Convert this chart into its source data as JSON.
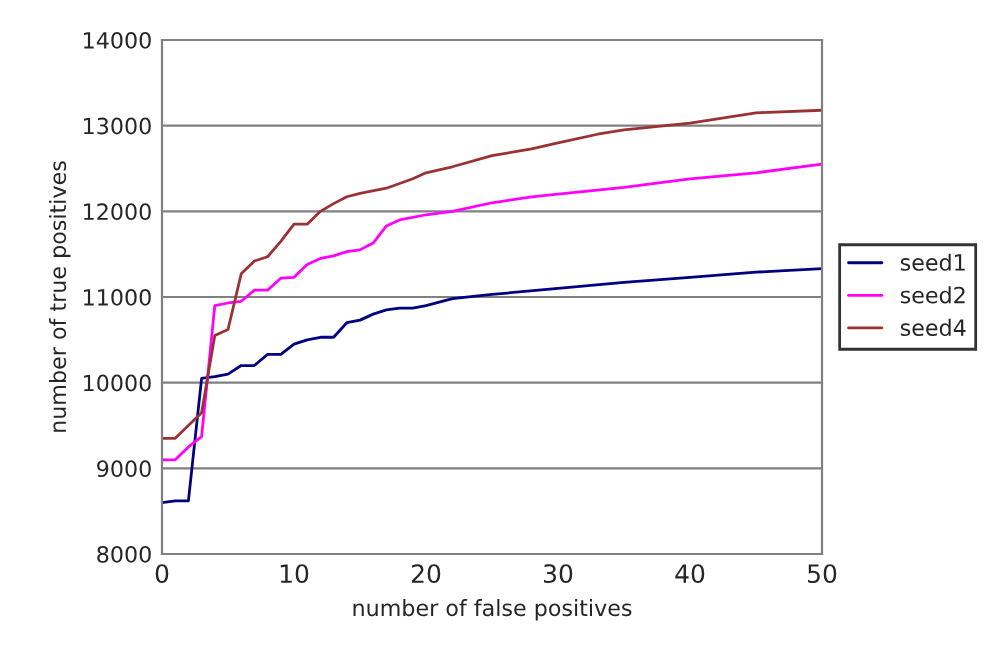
{
  "chart_data": {
    "type": "line",
    "xlabel": "number of false positives",
    "ylabel": "number of true positives",
    "xlim": [
      0,
      50
    ],
    "xticks": [
      0,
      10,
      20,
      30,
      40,
      50
    ],
    "ylim": [
      8000,
      14000
    ],
    "yticks": [
      8000,
      9000,
      10000,
      11000,
      12000,
      13000,
      14000
    ],
    "grid": "y",
    "legend": "right",
    "marker": "none",
    "line_style": "solid",
    "series": [
      {
        "name": "seed1",
        "color": "#000080",
        "x": [
          0,
          1,
          2,
          3,
          4,
          5,
          6,
          7,
          8,
          9,
          10,
          11,
          12,
          13,
          14,
          15,
          16,
          17,
          18,
          19,
          20,
          22,
          25,
          30,
          35,
          40,
          45,
          50
        ],
        "values": [
          8600,
          8620,
          8620,
          10050,
          10070,
          10100,
          10200,
          10200,
          10330,
          10330,
          10450,
          10500,
          10530,
          10530,
          10700,
          10730,
          10800,
          10850,
          10870,
          10870,
          10900,
          10980,
          11030,
          11100,
          11170,
          11230,
          11290,
          11330
        ]
      },
      {
        "name": "seed2",
        "color": "#ff00ff",
        "x": [
          0,
          1,
          2,
          3,
          4,
          5,
          6,
          7,
          8,
          9,
          10,
          11,
          12,
          13,
          14,
          15,
          16,
          17,
          18,
          20,
          22,
          25,
          28,
          30,
          35,
          40,
          45,
          50
        ],
        "values": [
          9100,
          9100,
          9250,
          9370,
          10900,
          10930,
          10950,
          11080,
          11080,
          11220,
          11230,
          11380,
          11450,
          11480,
          11530,
          11550,
          11630,
          11830,
          11900,
          11960,
          12000,
          12100,
          12170,
          12200,
          12280,
          12380,
          12450,
          12550
        ]
      },
      {
        "name": "seed4",
        "color": "#993333",
        "x": [
          0,
          1,
          2,
          3,
          4,
          5,
          6,
          7,
          8,
          9,
          10,
          11,
          12,
          13,
          14,
          15,
          17,
          19,
          20,
          22,
          25,
          28,
          30,
          33,
          35,
          40,
          45,
          50
        ],
        "values": [
          9350,
          9350,
          9500,
          9650,
          10550,
          10620,
          11270,
          11420,
          11470,
          11650,
          11850,
          11850,
          12000,
          12090,
          12170,
          12210,
          12270,
          12380,
          12450,
          12520,
          12650,
          12730,
          12800,
          12900,
          12950,
          13030,
          13150,
          13180
        ]
      }
    ]
  }
}
